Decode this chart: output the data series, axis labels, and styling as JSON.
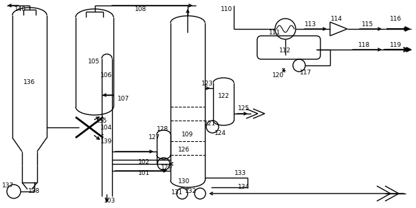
{
  "bg_color": "#ffffff",
  "line_color": "#000000",
  "lw": 1.0,
  "fig_width": 6.05,
  "fig_height": 3.02,
  "dpi": 100
}
